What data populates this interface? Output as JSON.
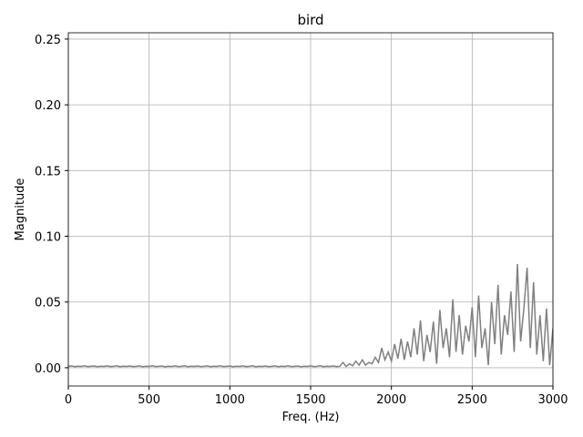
{
  "chart_data": {
    "type": "line",
    "title": "bird",
    "xlabel": "Freq. (Hz)",
    "ylabel": "Magnitude",
    "color": "#808080",
    "grid": true,
    "xlim": [
      0,
      3000
    ],
    "ylim": [
      -0.0139,
      0.2548
    ],
    "xticks": [
      0,
      500,
      1000,
      1500,
      2000,
      2500,
      3000
    ],
    "yticks": [
      {
        "value": 0,
        "label": "0.00"
      },
      {
        "value": 0.05,
        "label": "0.05"
      },
      {
        "value": 0.1,
        "label": "0.10"
      },
      {
        "value": 0.15,
        "label": "0.15"
      },
      {
        "value": 0.2,
        "label": "0.20"
      },
      {
        "value": 0.25,
        "label": "0.25"
      }
    ],
    "x": [
      0,
      20,
      40,
      60,
      80,
      100,
      120,
      140,
      160,
      180,
      200,
      220,
      240,
      260,
      280,
      300,
      320,
      340,
      360,
      380,
      400,
      420,
      440,
      460,
      480,
      500,
      520,
      540,
      560,
      580,
      600,
      620,
      640,
      660,
      680,
      700,
      720,
      740,
      760,
      780,
      800,
      820,
      840,
      860,
      880,
      900,
      920,
      940,
      960,
      980,
      1000,
      1020,
      1040,
      1060,
      1080,
      1100,
      1120,
      1140,
      1160,
      1180,
      1200,
      1220,
      1240,
      1260,
      1280,
      1300,
      1320,
      1340,
      1360,
      1380,
      1400,
      1420,
      1440,
      1460,
      1480,
      1500,
      1520,
      1540,
      1560,
      1580,
      1600,
      1620,
      1640,
      1660,
      1680,
      1700,
      1720,
      1740,
      1760,
      1780,
      1800,
      1820,
      1840,
      1860,
      1880,
      1900,
      1920,
      1940,
      1960,
      1980,
      2000,
      2020,
      2040,
      2060,
      2080,
      2100,
      2120,
      2140,
      2160,
      2180,
      2200,
      2220,
      2240,
      2260,
      2280,
      2300,
      2320,
      2340,
      2360,
      2380,
      2400,
      2420,
      2440,
      2460,
      2480,
      2500,
      2520,
      2540,
      2560,
      2580,
      2600,
      2620,
      2640,
      2660,
      2680,
      2700,
      2720,
      2740,
      2760,
      2780,
      2800,
      2820,
      2840,
      2860,
      2880,
      2900,
      2920,
      2940,
      2960,
      2980,
      3000
    ],
    "values": [
      0.001,
      0.0014,
      0.0008,
      0.0012,
      0.001,
      0.0015,
      0.0009,
      0.0011,
      0.0013,
      0.0008,
      0.0012,
      0.001,
      0.0014,
      0.0009,
      0.0011,
      0.0015,
      0.0008,
      0.0012,
      0.001,
      0.0013,
      0.0009,
      0.0011,
      0.0014,
      0.0008,
      0.0012,
      0.001,
      0.0015,
      0.0009,
      0.0011,
      0.0013,
      0.0008,
      0.0012,
      0.001,
      0.0014,
      0.0009,
      0.0011,
      0.0015,
      0.0008,
      0.0012,
      0.001,
      0.0013,
      0.0009,
      0.0011,
      0.0014,
      0.0008,
      0.0012,
      0.001,
      0.0015,
      0.0009,
      0.0011,
      0.0013,
      0.0008,
      0.0012,
      0.001,
      0.0014,
      0.0009,
      0.0011,
      0.0015,
      0.0008,
      0.0012,
      0.001,
      0.0013,
      0.0009,
      0.0011,
      0.0014,
      0.0008,
      0.0012,
      0.001,
      0.0015,
      0.0009,
      0.0011,
      0.0013,
      0.0008,
      0.0012,
      0.001,
      0.0014,
      0.0009,
      0.0011,
      0.0015,
      0.0008,
      0.0012,
      0.001,
      0.0013,
      0.0009,
      0.0011,
      0.004,
      0.001,
      0.003,
      0.0015,
      0.005,
      0.002,
      0.006,
      0.002,
      0.004,
      0.003,
      0.008,
      0.004,
      0.015,
      0.006,
      0.012,
      0.005,
      0.018,
      0.007,
      0.022,
      0.006,
      0.02,
      0.008,
      0.03,
      0.01,
      0.036,
      0.005,
      0.025,
      0.012,
      0.035,
      0.003,
      0.044,
      0.015,
      0.03,
      0.008,
      0.052,
      0.012,
      0.04,
      0.01,
      0.032,
      0.02,
      0.046,
      0.008,
      0.055,
      0.015,
      0.03,
      0.002,
      0.05,
      0.018,
      0.063,
      0.01,
      0.04,
      0.025,
      0.058,
      0.012,
      0.079,
      0.02,
      0.045,
      0.076,
      0.015,
      0.065,
      0.01,
      0.04,
      0.005,
      0.045,
      0.002,
      0.03
    ]
  }
}
